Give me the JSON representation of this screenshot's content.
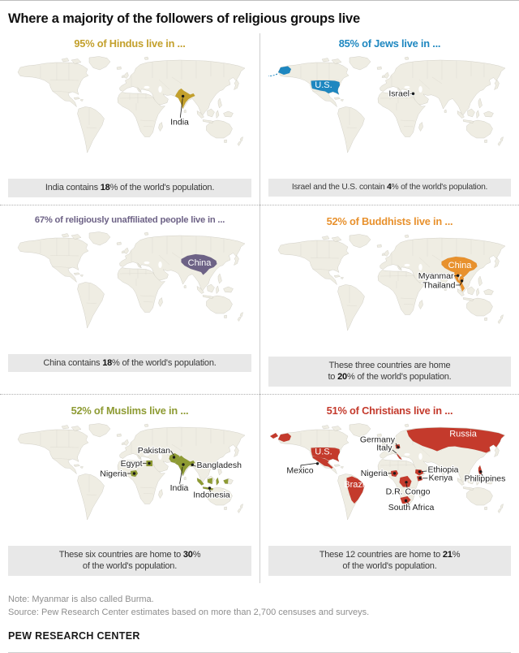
{
  "header": {
    "title": "Where a majority of the followers of religious groups live"
  },
  "panels": [
    {
      "id": "hindus",
      "heading": "95% of Hindus live in ...",
      "color": "#c3a02c",
      "labels": [
        "India"
      ],
      "caption": "India contains **18**% of the world's population."
    },
    {
      "id": "jews",
      "heading": "85% of Jews live in ...",
      "color": "#1e87c0",
      "labels": [
        "U.S.",
        "Israel"
      ],
      "caption": "Israel and the U.S. contain **4**% of the world's population."
    },
    {
      "id": "unaffiliated",
      "heading": "67% of religiously unaffiliated people live in ...",
      "color": "#6d6286",
      "labels": [
        "China"
      ],
      "caption": "China contains **18**% of the world's population."
    },
    {
      "id": "buddhists",
      "heading": "52% of Buddhists live in ...",
      "color": "#e8912d",
      "labels": [
        "China",
        "Myanmar",
        "Thailand"
      ],
      "caption": "These three countries are home\nto **20**% of the world's population."
    },
    {
      "id": "muslims",
      "heading": "52% of Muslims live in ...",
      "color": "#8e9b33",
      "labels": [
        "Pakistan",
        "Egypt",
        "Nigeria",
        "India",
        "Bangladesh",
        "Indonesia"
      ],
      "caption": "These six countries are home to **30**%\nof the world's population."
    },
    {
      "id": "christians",
      "heading": "51% of Christians live in ...",
      "color": "#c43a2c",
      "labels": [
        "U.S.",
        "Mexico",
        "Brazil",
        "Russia",
        "Germany",
        "Italy",
        "Nigeria",
        "Ethiopia",
        "Kenya",
        "D.R. Congo",
        "South Africa",
        "Philippines"
      ],
      "caption": "These 12 countries are home to **21**%\nof the world's population."
    }
  ],
  "chart_data": {
    "type": "table",
    "title": "Where a majority of the followers of religious groups live",
    "columns": [
      "group",
      "share_of_followers",
      "countries",
      "share_of_world_population"
    ],
    "rows": [
      [
        "Hindus",
        "95%",
        [
          "India"
        ],
        "18%"
      ],
      [
        "Jews",
        "85%",
        [
          "Israel",
          "U.S."
        ],
        "4%"
      ],
      [
        "Religiously unaffiliated",
        "67%",
        [
          "China"
        ],
        "18%"
      ],
      [
        "Buddhists",
        "52%",
        [
          "China",
          "Myanmar",
          "Thailand"
        ],
        "20%"
      ],
      [
        "Muslims",
        "52%",
        [
          "Pakistan",
          "Egypt",
          "Nigeria",
          "India",
          "Bangladesh",
          "Indonesia"
        ],
        "30%"
      ],
      [
        "Christians",
        "51%",
        [
          "U.S.",
          "Mexico",
          "Brazil",
          "Russia",
          "Germany",
          "Italy",
          "Nigeria",
          "Ethiopia",
          "Kenya",
          "D.R. Congo",
          "South Africa",
          "Philippines"
        ],
        "21%"
      ]
    ]
  },
  "footer": {
    "note": "Note: Myanmar is also called Burma.",
    "source": "Source: Pew Research Center estimates based on more than 2,700 censuses and surveys.",
    "brand": "PEW RESEARCH CENTER"
  },
  "styles": {
    "land": "#efede3",
    "land_border": "#c9c7bc",
    "internal_border": "#d8d6cb",
    "caption_bg": "#e8e8e8",
    "divider": "#cfcfcf",
    "note_gray": "#8e8e8e"
  }
}
